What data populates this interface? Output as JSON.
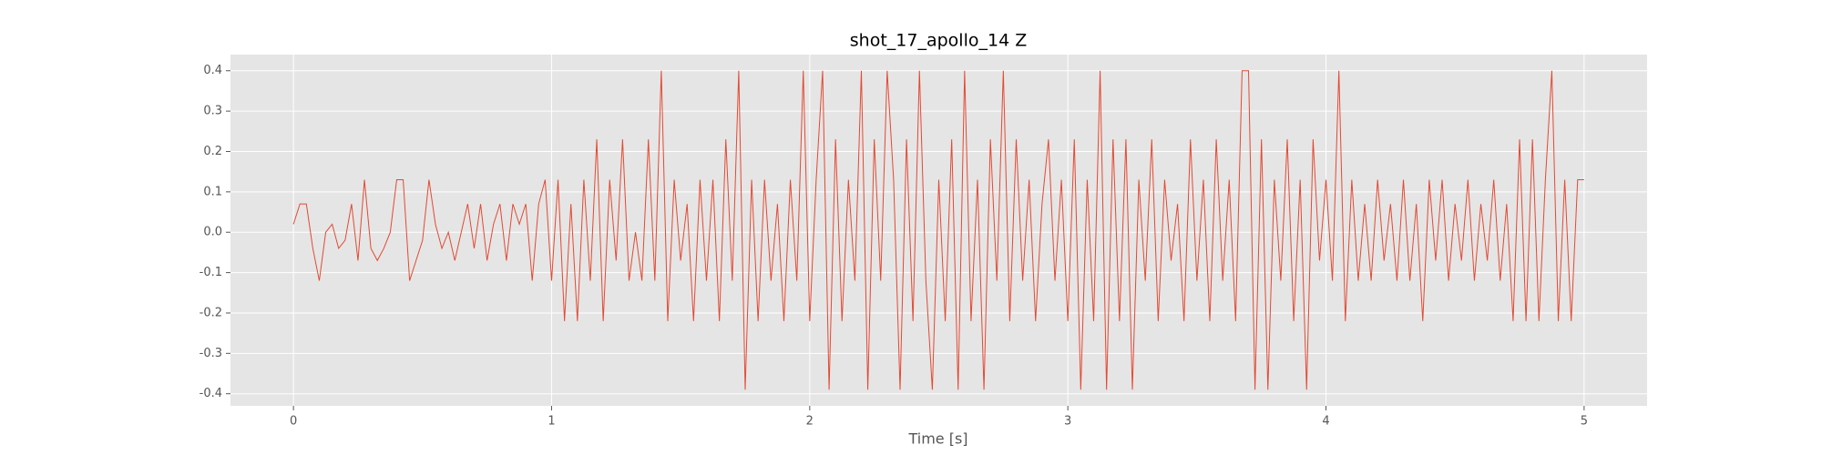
{
  "chart_data": {
    "type": "line",
    "title": "shot_17_apollo_14 Z",
    "xlabel": "Time [s]",
    "x": [
      0,
      0.025,
      0.05,
      0.075,
      0.1,
      0.125,
      0.15,
      0.175,
      0.2,
      0.225,
      0.25,
      0.275,
      0.3,
      0.325,
      0.35,
      0.375,
      0.4,
      0.425,
      0.45,
      0.475,
      0.5,
      0.525,
      0.55,
      0.575,
      0.6,
      0.625,
      0.65,
      0.675,
      0.7,
      0.725,
      0.75,
      0.775,
      0.8,
      0.825,
      0.85,
      0.875,
      0.9,
      0.925,
      0.95,
      0.975,
      1,
      1.025,
      1.05,
      1.075,
      1.1,
      1.125,
      1.15,
      1.175,
      1.2,
      1.225,
      1.25,
      1.275,
      1.3,
      1.325,
      1.35,
      1.375,
      1.4,
      1.425,
      1.45,
      1.475,
      1.5,
      1.525,
      1.55,
      1.575,
      1.6,
      1.625,
      1.65,
      1.675,
      1.7,
      1.725,
      1.75,
      1.775,
      1.8,
      1.825,
      1.85,
      1.875,
      1.9,
      1.925,
      1.95,
      1.975,
      2,
      2.025,
      2.05,
      2.075,
      2.1,
      2.125,
      2.15,
      2.175,
      2.2,
      2.225,
      2.25,
      2.275,
      2.3,
      2.325,
      2.35,
      2.375,
      2.4,
      2.425,
      2.45,
      2.475,
      2.5,
      2.525,
      2.55,
      2.575,
      2.6,
      2.625,
      2.65,
      2.675,
      2.7,
      2.725,
      2.75,
      2.775,
      2.8,
      2.825,
      2.85,
      2.875,
      2.9,
      2.925,
      2.95,
      2.975,
      3,
      3.025,
      3.05,
      3.075,
      3.1,
      3.125,
      3.15,
      3.175,
      3.2,
      3.225,
      3.25,
      3.275,
      3.3,
      3.325,
      3.35,
      3.375,
      3.4,
      3.425,
      3.45,
      3.475,
      3.5,
      3.525,
      3.55,
      3.575,
      3.6,
      3.625,
      3.65,
      3.675,
      3.7,
      3.725,
      3.75,
      3.775,
      3.8,
      3.825,
      3.85,
      3.875,
      3.9,
      3.925,
      3.95,
      3.975,
      4,
      4.025,
      4.05,
      4.075,
      4.1,
      4.125,
      4.15,
      4.175,
      4.2,
      4.225,
      4.25,
      4.275,
      4.3,
      4.325,
      4.35,
      4.375,
      4.4,
      4.425,
      4.45,
      4.475,
      4.5,
      4.525,
      4.55,
      4.575,
      4.6,
      4.625,
      4.65,
      4.675,
      4.7,
      4.725,
      4.75,
      4.775,
      4.8,
      4.825,
      4.85,
      4.875,
      4.9,
      4.925,
      4.95,
      4.975,
      5
    ],
    "series": [
      {
        "name": "Z",
        "color": "#E24A33",
        "values": [
          0.02,
          0.07,
          0.07,
          -0.04,
          -0.12,
          0.0,
          0.02,
          -0.04,
          -0.02,
          0.07,
          -0.07,
          0.13,
          -0.04,
          -0.07,
          -0.04,
          0.0,
          0.13,
          0.13,
          -0.12,
          -0.07,
          -0.02,
          0.13,
          0.02,
          -0.04,
          0.0,
          -0.07,
          0.0,
          0.07,
          -0.04,
          0.07,
          -0.07,
          0.02,
          0.07,
          -0.07,
          0.07,
          0.02,
          0.07,
          -0.12,
          0.07,
          0.13,
          -0.12,
          0.13,
          -0.22,
          0.07,
          -0.22,
          0.13,
          -0.12,
          0.23,
          -0.22,
          0.13,
          -0.07,
          0.23,
          -0.12,
          0.0,
          -0.12,
          0.23,
          -0.12,
          0.4,
          -0.22,
          0.13,
          -0.07,
          0.07,
          -0.22,
          0.13,
          -0.12,
          0.13,
          -0.22,
          0.23,
          -0.12,
          0.4,
          -0.39,
          0.13,
          -0.22,
          0.13,
          -0.12,
          0.07,
          -0.22,
          0.13,
          -0.12,
          0.4,
          -0.22,
          0.13,
          0.4,
          -0.39,
          0.23,
          -0.22,
          0.13,
          -0.12,
          0.4,
          -0.39,
          0.23,
          -0.12,
          0.4,
          0.13,
          -0.39,
          0.23,
          -0.22,
          0.4,
          -0.12,
          -0.39,
          0.13,
          -0.22,
          0.23,
          -0.39,
          0.4,
          -0.22,
          0.13,
          -0.39,
          0.23,
          -0.12,
          0.4,
          -0.22,
          0.23,
          -0.12,
          0.13,
          -0.22,
          0.07,
          0.23,
          -0.12,
          0.13,
          -0.22,
          0.23,
          -0.39,
          0.13,
          -0.22,
          0.4,
          -0.39,
          0.23,
          -0.22,
          0.23,
          -0.39,
          0.13,
          -0.12,
          0.23,
          -0.22,
          0.13,
          -0.07,
          0.07,
          -0.22,
          0.23,
          -0.12,
          0.13,
          -0.22,
          0.23,
          -0.12,
          0.13,
          -0.22,
          0.4,
          0.4,
          -0.39,
          0.23,
          -0.39,
          0.13,
          -0.12,
          0.23,
          -0.22,
          0.13,
          -0.39,
          0.23,
          -0.07,
          0.13,
          -0.12,
          0.4,
          -0.22,
          0.13,
          -0.12,
          0.07,
          -0.12,
          0.13,
          -0.07,
          0.07,
          -0.12,
          0.13,
          -0.12,
          0.07,
          -0.22,
          0.13,
          -0.07,
          0.13,
          -0.12,
          0.07,
          -0.07,
          0.13,
          -0.12,
          0.07,
          -0.07,
          0.13,
          -0.12,
          0.07,
          -0.22,
          0.23,
          -0.22,
          0.23,
          -0.22,
          0.13,
          0.4,
          -0.22,
          0.13,
          -0.22,
          0.13,
          0.13
        ]
      }
    ],
    "xlim": [
      -0.244,
      5.244
    ],
    "ylim": [
      -0.43,
      0.44
    ],
    "xticks": [
      0,
      1,
      2,
      3,
      4,
      5
    ],
    "yticks": [
      -0.4,
      -0.3,
      -0.2,
      -0.1,
      {
        "value": 0,
        "label": "0.0"
      },
      0.1,
      0.2,
      0.3,
      0.4
    ],
    "grid": true
  }
}
